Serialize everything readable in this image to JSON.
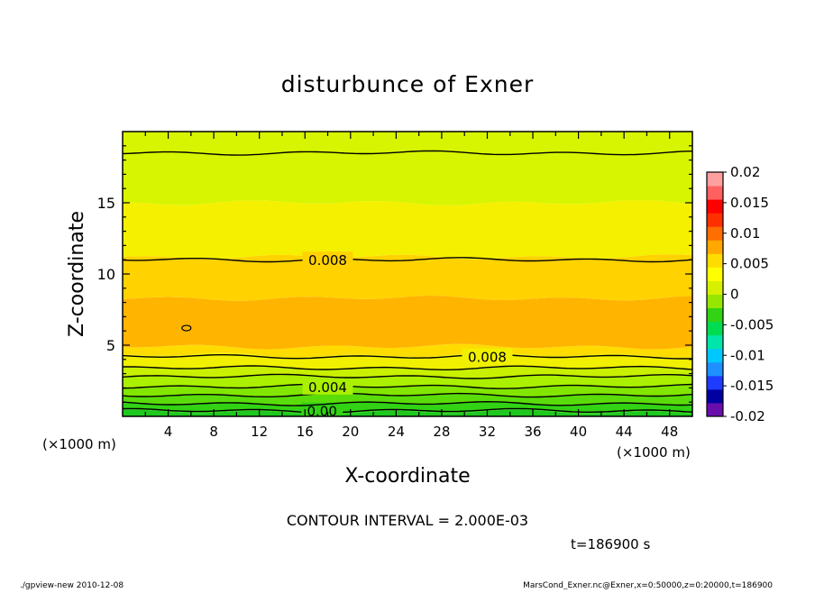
{
  "chart_data": {
    "type": "heatmap",
    "title": "disturbunce of Exner",
    "xlabel": "X-coordinate",
    "ylabel": "Z-coordinate",
    "x_unit_label_left": "(×1000 m)",
    "x_unit_label_right": "(×1000 m)",
    "xlim": [
      0,
      50
    ],
    "ylim": [
      0,
      20
    ],
    "x_ticks": [
      4,
      8,
      12,
      16,
      20,
      24,
      28,
      32,
      36,
      40,
      44,
      48
    ],
    "y_ticks": [
      5,
      10,
      15
    ],
    "contour_interval_text": "CONTOUR INTERVAL = 2.000E-03",
    "time_label": "t=186900 s",
    "colorbar": {
      "ticks": [
        "0.02",
        "0.015",
        "0.01",
        "0.005",
        "0",
        "-0.005",
        "-0.01",
        "-0.015",
        "-0.02"
      ],
      "range": [
        -0.02,
        0.02
      ],
      "colors": [
        "#6a0dad",
        "#0000a0",
        "#1e3cff",
        "#1e90ff",
        "#00c8ff",
        "#00e6aa",
        "#00dc50",
        "#32d214",
        "#96e600",
        "#d7f000",
        "#ffff00",
        "#ffdc00",
        "#ffa800",
        "#ff6e00",
        "#ff3000",
        "#ff0000",
        "#ff6060",
        "#ffa0a0"
      ]
    },
    "bands": [
      {
        "z_min": 0.0,
        "z_max": 0.3,
        "color": "#1ec81e"
      },
      {
        "z_min": 0.3,
        "z_max": 0.9,
        "color": "#32d214"
      },
      {
        "z_min": 0.9,
        "z_max": 1.5,
        "color": "#5adc0a"
      },
      {
        "z_min": 1.5,
        "z_max": 2.1,
        "color": "#82e600"
      },
      {
        "z_min": 2.1,
        "z_max": 2.8,
        "color": "#aaf000"
      },
      {
        "z_min": 2.8,
        "z_max": 3.4,
        "color": "#c8f000"
      },
      {
        "z_min": 3.4,
        "z_max": 4.3,
        "color": "#f0f000"
      },
      {
        "z_min": 4.3,
        "z_max": 4.9,
        "color": "#ffdc00"
      },
      {
        "z_min": 4.9,
        "z_max": 8.3,
        "color": "#ffb400"
      },
      {
        "z_min": 8.3,
        "z_max": 11.2,
        "color": "#ffd200"
      },
      {
        "z_min": 11.2,
        "z_max": 15.0,
        "color": "#f5f000"
      },
      {
        "z_min": 15.0,
        "z_max": 20.0,
        "color": "#d7f500"
      }
    ],
    "contours": [
      {
        "z": 0.4,
        "label": "0.00",
        "label_x": 17.5
      },
      {
        "z": 0.9,
        "label": "",
        "label_x": null
      },
      {
        "z": 1.5,
        "label": "",
        "label_x": null
      },
      {
        "z": 2.1,
        "label": "0.004",
        "label_x": 18.0
      },
      {
        "z": 2.8,
        "label": "",
        "label_x": null
      },
      {
        "z": 3.4,
        "label": "",
        "label_x": null
      },
      {
        "z": 4.2,
        "label": "0.008",
        "label_x": 32.0
      },
      {
        "z": 11.0,
        "label": "0.008",
        "label_x": 18.0
      },
      {
        "z": 18.5,
        "label": "",
        "label_x": null
      }
    ],
    "small_contour": {
      "x": 5.6,
      "z": 6.2
    }
  },
  "footer": {
    "left": "./gpview-new   2010-12-08",
    "right": "MarsCond_Exner.nc@Exner,x=0:50000,z=0:20000,t=186900"
  }
}
